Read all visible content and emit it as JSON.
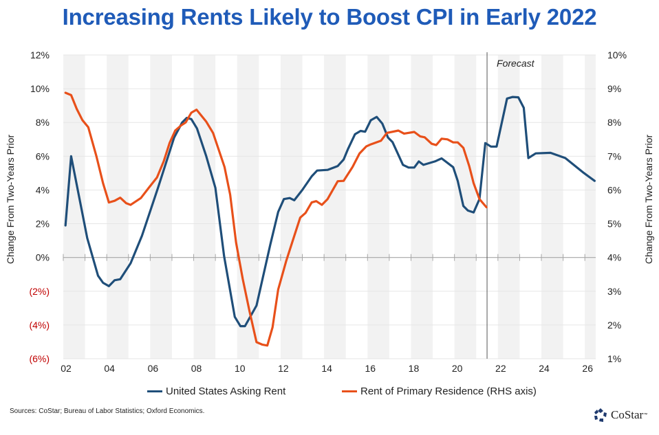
{
  "title": "Increasing Rents Likely to Boost CPI in Early 2022",
  "sources": "Sources: CoStar; Bureau of Labor Statistics; Oxford Economics.",
  "logo": {
    "text": "CoStar",
    "trademark": "™"
  },
  "chart_data": {
    "type": "line",
    "title": "Increasing Rents Likely to Boost CPI in Early 2022",
    "ylabel_left": "Change From Two-Years Prior",
    "ylabel_right": "Change From Two-Years Prior",
    "x_range": [
      2002,
      2026.5
    ],
    "x_ticks": [
      2002,
      2004,
      2006,
      2008,
      2010,
      2012,
      2014,
      2016,
      2018,
      2020,
      2022,
      2024,
      2026
    ],
    "x_tick_labels": [
      "02",
      "04",
      "06",
      "08",
      "10",
      "12",
      "14",
      "16",
      "18",
      "20",
      "22",
      "24",
      "26"
    ],
    "ylim_left": [
      -6,
      12
    ],
    "y_ticks_left": [
      12,
      10,
      8,
      6,
      4,
      2,
      0,
      -2,
      -4,
      -6
    ],
    "y_tick_labels_left": [
      "12%",
      "10%",
      "8%",
      "6%",
      "4%",
      "2%",
      "0%",
      "(2%)",
      "(4%)",
      "(6%)"
    ],
    "ylim_right": [
      1,
      10
    ],
    "y_ticks_right": [
      10,
      9,
      8,
      7,
      6,
      5,
      4,
      3,
      2,
      1
    ],
    "y_tick_labels_right": [
      "10%",
      "9%",
      "8%",
      "7%",
      "6%",
      "5%",
      "4%",
      "3%",
      "2%",
      "1%"
    ],
    "negative_label_color": "#c00000",
    "alternating_year_shading": true,
    "grid": true,
    "annotation": {
      "text": "Forecast",
      "x": 2021.5
    },
    "legend_position": "bottom",
    "series": [
      {
        "name": "United States Asking Rent",
        "axis": "left",
        "color": "#1f4e79",
        "points": [
          [
            2002.1,
            1.9
          ],
          [
            2002.36,
            6.0
          ],
          [
            2003.1,
            1.15
          ],
          [
            2003.6,
            -1.08
          ],
          [
            2003.83,
            -1.5
          ],
          [
            2004.1,
            -1.7
          ],
          [
            2004.36,
            -1.35
          ],
          [
            2004.62,
            -1.29
          ],
          [
            2005.1,
            -0.34
          ],
          [
            2005.62,
            1.29
          ],
          [
            2006.36,
            4.13
          ],
          [
            2007.1,
            7.1
          ],
          [
            2007.47,
            8.0
          ],
          [
            2007.68,
            8.27
          ],
          [
            2007.89,
            8.2
          ],
          [
            2008.15,
            7.65
          ],
          [
            2008.57,
            6.03
          ],
          [
            2009.0,
            4.13
          ],
          [
            2009.4,
            0.07
          ],
          [
            2009.89,
            -3.52
          ],
          [
            2010.15,
            -4.07
          ],
          [
            2010.36,
            -4.07
          ],
          [
            2010.89,
            -2.85
          ],
          [
            2011.52,
            0.74
          ],
          [
            2011.89,
            2.7
          ],
          [
            2012.15,
            3.46
          ],
          [
            2012.42,
            3.52
          ],
          [
            2012.63,
            3.39
          ],
          [
            2013.0,
            4.0
          ],
          [
            2013.43,
            4.81
          ],
          [
            2013.68,
            5.15
          ],
          [
            2014.16,
            5.19
          ],
          [
            2014.63,
            5.42
          ],
          [
            2014.9,
            5.8
          ],
          [
            2015.1,
            6.43
          ],
          [
            2015.42,
            7.3
          ],
          [
            2015.68,
            7.5
          ],
          [
            2015.89,
            7.45
          ],
          [
            2016.15,
            8.13
          ],
          [
            2016.42,
            8.33
          ],
          [
            2016.68,
            7.93
          ],
          [
            2016.94,
            7.11
          ],
          [
            2017.15,
            6.84
          ],
          [
            2017.63,
            5.49
          ],
          [
            2017.89,
            5.33
          ],
          [
            2018.15,
            5.33
          ],
          [
            2018.36,
            5.69
          ],
          [
            2018.57,
            5.49
          ],
          [
            2019.1,
            5.69
          ],
          [
            2019.41,
            5.87
          ],
          [
            2019.94,
            5.35
          ],
          [
            2020.15,
            4.54
          ],
          [
            2020.41,
            3.05
          ],
          [
            2020.62,
            2.78
          ],
          [
            2020.88,
            2.67
          ],
          [
            2021.15,
            3.46
          ],
          [
            2021.42,
            6.78
          ],
          [
            2021.68,
            6.57
          ],
          [
            2021.94,
            6.57
          ],
          [
            2022.42,
            9.42
          ],
          [
            2022.68,
            9.51
          ],
          [
            2022.94,
            9.49
          ],
          [
            2023.19,
            8.87
          ],
          [
            2023.4,
            5.89
          ],
          [
            2023.74,
            6.17
          ],
          [
            2024.42,
            6.2
          ],
          [
            2025.1,
            5.89
          ],
          [
            2025.95,
            5.01
          ],
          [
            2026.45,
            4.54
          ]
        ]
      },
      {
        "name": "Rent of Primary Residence (RHS axis)",
        "axis": "right",
        "color": "#e8501a",
        "points": [
          [
            2002.1,
            8.88
          ],
          [
            2002.36,
            8.81
          ],
          [
            2002.62,
            8.4
          ],
          [
            2002.88,
            8.07
          ],
          [
            2003.15,
            7.86
          ],
          [
            2003.52,
            7.01
          ],
          [
            2003.83,
            6.2
          ],
          [
            2004.1,
            5.63
          ],
          [
            2004.36,
            5.68
          ],
          [
            2004.62,
            5.77
          ],
          [
            2004.89,
            5.61
          ],
          [
            2005.1,
            5.56
          ],
          [
            2005.57,
            5.76
          ],
          [
            2005.94,
            6.07
          ],
          [
            2006.31,
            6.37
          ],
          [
            2006.62,
            6.85
          ],
          [
            2006.89,
            7.39
          ],
          [
            2007.15,
            7.76
          ],
          [
            2007.42,
            7.91
          ],
          [
            2007.63,
            8.0
          ],
          [
            2007.89,
            8.29
          ],
          [
            2008.13,
            8.38
          ],
          [
            2008.57,
            8.03
          ],
          [
            2008.89,
            7.69
          ],
          [
            2009.42,
            6.68
          ],
          [
            2009.68,
            5.86
          ],
          [
            2009.95,
            4.44
          ],
          [
            2010.26,
            3.36
          ],
          [
            2010.57,
            2.41
          ],
          [
            2010.89,
            1.49
          ],
          [
            2011.15,
            1.42
          ],
          [
            2011.39,
            1.39
          ],
          [
            2011.63,
            1.93
          ],
          [
            2011.89,
            3.05
          ],
          [
            2012.26,
            3.9
          ],
          [
            2012.63,
            4.64
          ],
          [
            2012.9,
            5.18
          ],
          [
            2013.15,
            5.32
          ],
          [
            2013.43,
            5.63
          ],
          [
            2013.64,
            5.67
          ],
          [
            2013.9,
            5.56
          ],
          [
            2014.16,
            5.73
          ],
          [
            2014.63,
            6.26
          ],
          [
            2014.9,
            6.27
          ],
          [
            2015.31,
            6.68
          ],
          [
            2015.63,
            7.08
          ],
          [
            2015.94,
            7.29
          ],
          [
            2016.15,
            7.35
          ],
          [
            2016.62,
            7.46
          ],
          [
            2016.89,
            7.69
          ],
          [
            2017.42,
            7.76
          ],
          [
            2017.68,
            7.67
          ],
          [
            2018.15,
            7.72
          ],
          [
            2018.42,
            7.59
          ],
          [
            2018.63,
            7.56
          ],
          [
            2018.95,
            7.37
          ],
          [
            2019.16,
            7.33
          ],
          [
            2019.41,
            7.52
          ],
          [
            2019.68,
            7.5
          ],
          [
            2019.94,
            7.41
          ],
          [
            2020.15,
            7.41
          ],
          [
            2020.41,
            7.25
          ],
          [
            2020.68,
            6.71
          ],
          [
            2020.88,
            6.2
          ],
          [
            2021.15,
            5.73
          ],
          [
            2021.47,
            5.49
          ]
        ]
      }
    ]
  }
}
